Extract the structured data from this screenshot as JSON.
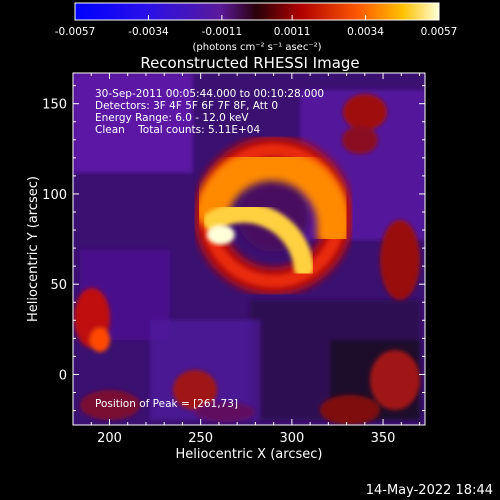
{
  "chart_data": {
    "type": "heatmap",
    "title": "Reconstructed RHESSI Image",
    "xlabel": "Heliocentric X (arcsec)",
    "ylabel": "Heliocentric Y (arcsec)",
    "xlim": [
      180,
      373
    ],
    "ylim": [
      -28,
      167
    ],
    "xticks": [
      "200",
      "250",
      "300",
      "350"
    ],
    "xtick_values": [
      200,
      250,
      300,
      350
    ],
    "yticks": [
      "0",
      "50",
      "100",
      "150"
    ],
    "ytick_values": [
      0,
      50,
      100,
      150
    ],
    "colorbar": {
      "ticks": [
        "-0.0057",
        "-0.0034",
        "-0.0011",
        "0.0011",
        "0.0034",
        "0.0057"
      ],
      "tick_values": [
        -0.0057,
        -0.0034,
        -0.0011,
        0.0011,
        0.0034,
        0.0057
      ],
      "range": [
        -0.0057,
        0.0057
      ],
      "unit_label": "(photons cm⁻² s⁻¹ asec⁻²)"
    },
    "annotations": [
      "30-Sep-2011 00:05:44.000 to 00:10:28.000",
      "Detectors: 3F 4F 5F 6F 7F 8F, Att 0",
      "Energy Range: 6.0 - 12.0 keV",
      "Clean    Total counts: 5.11E+04"
    ],
    "peak_label": "Position of Peak = [261,73]",
    "peak": [
      261,
      73
    ],
    "source": {
      "ring_center": [
        290,
        88
      ],
      "ring_radius": 36
    }
  },
  "footer": {
    "date": "14-May-2022 18:44"
  },
  "colors": {
    "background": "#000000",
    "text": "#ffffff",
    "negative": "#1a10ff",
    "low": "#6a1ab8",
    "mid": "#c41010",
    "high": "#ff8c00",
    "peak": "#ffffd8"
  }
}
